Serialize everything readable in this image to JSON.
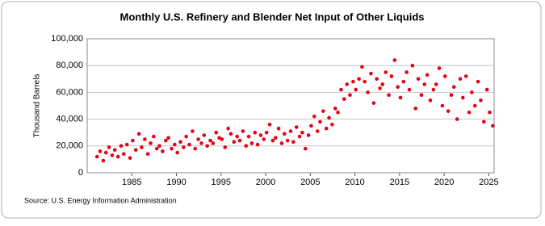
{
  "chart_data": {
    "type": "scatter",
    "title": "Monthly U.S. Refinery and Blender Net Input of Other Liquids",
    "y_label": "Thousand Barrels",
    "source": "Source: U.S. Energy Information Administration",
    "color": "#e60012",
    "grid": true,
    "xlim": [
      1980,
      2025.6
    ],
    "ylim": [
      0,
      100000
    ],
    "xticks": [
      1985,
      1990,
      1995,
      2000,
      2005,
      2010,
      2015,
      2020,
      2025
    ],
    "yticks": [
      0,
      {
        "value": 20000,
        "label": "20,000"
      },
      {
        "value": 40000,
        "label": "40,000"
      },
      {
        "value": 60000,
        "label": "60,000"
      },
      {
        "value": 80000,
        "label": "80,000"
      },
      {
        "value": 100000,
        "label": "100,000"
      }
    ],
    "x": [
      1981.1,
      1981.45,
      1981.8,
      1982.1,
      1982.45,
      1982.8,
      1983.1,
      1983.45,
      1983.8,
      1984.1,
      1984.45,
      1984.8,
      1985.1,
      1985.45,
      1985.8,
      1986.1,
      1986.45,
      1986.8,
      1987.1,
      1987.45,
      1987.8,
      1988.1,
      1988.45,
      1988.8,
      1989.1,
      1989.45,
      1989.8,
      1990.1,
      1990.45,
      1990.8,
      1991.1,
      1991.45,
      1991.8,
      1992.1,
      1992.45,
      1992.8,
      1993.1,
      1993.45,
      1993.8,
      1994.1,
      1994.45,
      1994.8,
      1995.1,
      1995.45,
      1995.8,
      1996.1,
      1996.45,
      1996.8,
      1997.1,
      1997.45,
      1997.8,
      1998.1,
      1998.45,
      1998.8,
      1999.1,
      1999.45,
      1999.8,
      2000.1,
      2000.45,
      2000.8,
      2001.1,
      2001.45,
      2001.8,
      2002.1,
      2002.45,
      2002.8,
      2003.1,
      2003.45,
      2003.8,
      2004.1,
      2004.45,
      2004.8,
      2005.1,
      2005.45,
      2005.8,
      2006.1,
      2006.45,
      2006.8,
      2007.1,
      2007.45,
      2007.8,
      2008.1,
      2008.45,
      2008.8,
      2009.1,
      2009.45,
      2009.8,
      2010.1,
      2010.45,
      2010.8,
      2011.1,
      2011.45,
      2011.8,
      2012.1,
      2012.45,
      2012.8,
      2013.1,
      2013.45,
      2013.8,
      2014.1,
      2014.45,
      2014.8,
      2015.1,
      2015.45,
      2015.8,
      2016.1,
      2016.45,
      2016.8,
      2017.1,
      2017.45,
      2017.8,
      2018.1,
      2018.45,
      2018.8,
      2019.1,
      2019.45,
      2019.8,
      2020.1,
      2020.45,
      2020.8,
      2021.1,
      2021.45,
      2021.8,
      2022.1,
      2022.45,
      2022.8,
      2023.1,
      2023.45,
      2023.8,
      2024.1,
      2024.45,
      2024.8,
      2025.1,
      2025.45
    ],
    "values": [
      12000,
      16000,
      9000,
      15000,
      19000,
      13000,
      17000,
      12000,
      20000,
      14000,
      21000,
      11000,
      24000,
      17000,
      29000,
      19000,
      25000,
      14000,
      22000,
      27000,
      18000,
      20000,
      16000,
      24000,
      26000,
      18000,
      21000,
      15000,
      23000,
      19000,
      27000,
      21000,
      31000,
      18000,
      25000,
      22000,
      28000,
      20000,
      24000,
      22000,
      30000,
      26000,
      25000,
      19000,
      33000,
      29000,
      23000,
      27000,
      24000,
      31000,
      20000,
      27000,
      22000,
      30000,
      21000,
      28000,
      25000,
      30000,
      36000,
      24000,
      26000,
      33000,
      22000,
      29000,
      24000,
      31000,
      23000,
      34000,
      27000,
      30000,
      18000,
      28000,
      35000,
      42000,
      31000,
      38000,
      46000,
      33000,
      41000,
      36000,
      48000,
      45000,
      62000,
      55000,
      66000,
      58000,
      68000,
      62000,
      70000,
      79000,
      68000,
      60000,
      74000,
      52000,
      70000,
      63000,
      66000,
      75000,
      58000,
      72000,
      84000,
      64000,
      56000,
      68000,
      75000,
      62000,
      80000,
      48000,
      70000,
      58000,
      66000,
      73000,
      54000,
      62000,
      66000,
      78000,
      50000,
      72000,
      46000,
      58000,
      64000,
      40000,
      70000,
      56000,
      72000,
      45000,
      60000,
      50000,
      68000,
      54000,
      38000,
      62000,
      45000,
      35000
    ]
  }
}
